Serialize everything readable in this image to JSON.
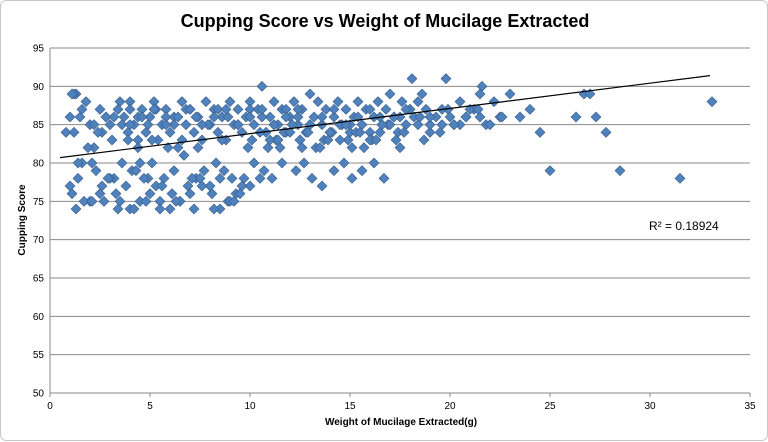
{
  "chart_data": {
    "type": "scatter",
    "title": "Cupping Score vs Weight of Mucilage Extracted",
    "xlabel": "Weight of Mucilage Extracted(g)",
    "ylabel": "Cupping Score",
    "xlim": [
      0,
      35
    ],
    "ylim": [
      50,
      95
    ],
    "xticks": [
      "0",
      "5",
      "10",
      "15",
      "20",
      "25",
      "30",
      "35"
    ],
    "yticks": [
      "50",
      "55",
      "60",
      "65",
      "70",
      "75",
      "80",
      "85",
      "90",
      "95"
    ],
    "grid": "horizontal",
    "legend": "none",
    "marker": "diamond",
    "marker_color": "#4f81bd",
    "marker_edge_color": "#385d8a",
    "trendline": {
      "type": "linear",
      "x": [
        0.5,
        33
      ],
      "y": [
        80.7,
        91.4
      ],
      "color": "#000000"
    },
    "annotation": "R² = 0.18924",
    "series": [
      {
        "x": [
          0.8,
          1.0,
          1.1,
          1.2,
          1.3,
          1.4,
          1.5,
          1.6,
          1.8,
          2.0,
          2.2,
          2.3,
          2.5,
          2.6,
          2.8,
          3.0,
          3.2,
          3.5,
          3.7,
          3.9,
          4.0,
          4.2,
          4.4,
          4.6,
          4.8,
          5.0,
          5.2,
          5.4,
          5.6,
          5.8,
          6.0,
          6.2,
          6.4,
          6.6,
          6.8,
          7.0,
          7.2,
          7.4,
          7.6,
          7.8,
          8.0,
          8.2,
          8.4,
          8.6,
          8.8,
          9.0,
          9.2,
          9.4,
          9.6,
          9.8,
          10.0,
          10.2,
          10.4,
          10.6,
          10.8,
          11.0,
          11.2,
          11.4,
          11.6,
          11.8,
          12.0,
          12.2,
          12.4,
          12.6,
          12.8,
          13.0,
          13.2,
          13.4,
          13.6,
          13.8,
          14.0,
          14.2,
          14.4,
          14.6,
          14.8,
          15.0,
          15.2,
          15.4,
          15.6,
          15.8,
          16.0,
          16.2,
          16.4,
          16.6,
          16.8,
          17.0,
          17.2,
          17.4,
          17.6,
          17.8,
          18.0,
          18.2,
          18.4,
          18.6,
          18.8,
          19.0,
          19.3,
          19.6,
          19.9,
          20.2,
          20.5,
          20.8,
          21.2,
          21.5,
          21.8,
          22.2,
          22.5,
          23.0,
          23.5,
          24.0,
          24.5,
          25.0,
          26.3,
          26.7,
          27.0,
          27.3,
          27.8,
          28.5,
          31.5,
          33.1,
          1.2,
          1.9,
          2.4,
          3.1,
          3.6,
          4.1,
          4.5,
          4.9,
          5.3,
          5.7,
          6.1,
          6.5,
          6.9,
          7.3,
          7.7,
          8.1,
          8.5,
          8.9,
          9.3,
          9.7,
          10.1,
          10.5,
          10.9,
          11.3,
          11.7,
          12.1,
          12.5,
          12.9,
          13.3,
          13.7,
          14.1,
          14.5,
          14.9,
          15.3,
          15.7,
          16.1,
          16.5,
          16.9,
          17.3,
          17.7,
          2.0,
          2.5,
          3.0,
          3.5,
          4.0,
          4.5,
          5.0,
          5.5,
          6.0,
          6.5,
          7.0,
          7.5,
          8.0,
          8.5,
          9.0,
          9.5,
          10.0,
          10.5,
          11.0,
          11.5,
          12.0,
          12.5,
          13.0,
          13.5,
          14.0,
          14.5,
          15.0,
          15.5,
          16.0,
          16.5,
          17.0,
          17.5,
          18.0,
          18.5,
          19.0,
          19.5,
          20.0,
          20.5,
          21.0,
          21.5,
          2.1,
          2.9,
          3.3,
          3.8,
          4.3,
          4.7,
          5.1,
          5.6,
          6.2,
          6.7,
          7.1,
          7.6,
          8.3,
          8.7,
          9.1,
          9.6,
          10.2,
          10.7,
          11.1,
          11.6,
          12.3,
          12.7,
          13.1,
          13.6,
          14.2,
          14.7,
          15.1,
          15.6,
          16.2,
          16.7,
          1.7,
          2.7,
          3.4,
          4.2,
          4.8,
          5.5,
          6.3,
          7.2,
          8.2,
          9.2,
          3.2,
          3.6,
          4.0,
          4.4,
          4.9,
          5.3,
          5.8,
          6.2,
          6.8,
          7.3,
          7.9,
          8.4,
          8.9,
          9.4,
          10.0,
          10.6,
          11.2,
          11.8,
          12.4,
          13.0,
          1.0,
          1.6,
          2.2,
          2.8,
          3.4,
          4.0,
          4.6,
          5.2,
          5.8,
          6.4,
          7.0,
          7.6,
          8.2,
          8.8,
          9.4,
          10.0,
          10.6,
          11.2,
          11.8,
          12.4,
          13.0,
          13.6,
          14.2,
          14.8,
          15.4,
          16.0,
          16.6,
          17.2,
          17.8,
          18.4,
          19.0,
          19.6,
          20.2,
          20.8,
          21.4,
          22.0,
          22.6,
          18.1,
          19.8,
          21.6,
          1.1,
          1.4,
          2.6,
          3.9,
          4.4,
          5.1,
          5.9,
          6.6,
          7.4,
          8.6,
          9.9,
          11.4,
          12.6,
          13.9,
          15.1,
          16.3,
          17.5,
          18.7,
          1.3,
          2.1
        ],
        "y": [
          84,
          77,
          76,
          84,
          89,
          78,
          86,
          80,
          88,
          85,
          82,
          79,
          87,
          84,
          86,
          85,
          78,
          88,
          86,
          84,
          88,
          85,
          83,
          87,
          84,
          86,
          88,
          83,
          85,
          87,
          84,
          86,
          82,
          88,
          85,
          87,
          84,
          86,
          83,
          88,
          85,
          87,
          84,
          86,
          83,
          88,
          85,
          87,
          84,
          86,
          88,
          85,
          87,
          90,
          84,
          86,
          88,
          85,
          87,
          84,
          86,
          88,
          85,
          87,
          84,
          89,
          86,
          88,
          85,
          87,
          84,
          86,
          88,
          85,
          87,
          84,
          86,
          88,
          85,
          87,
          84,
          86,
          88,
          85,
          87,
          89,
          86,
          84,
          88,
          85,
          87,
          86,
          88,
          89,
          87,
          84,
          86,
          85,
          87,
          85,
          88,
          86,
          87,
          89,
          85,
          88,
          86,
          89,
          86,
          87,
          84,
          79,
          86,
          89,
          89,
          86,
          84,
          79,
          78,
          88,
          89,
          82,
          84,
          83,
          80,
          79,
          80,
          78,
          77,
          78,
          76,
          75,
          77,
          78,
          79,
          76,
          78,
          75,
          76,
          78,
          83,
          84,
          82,
          83,
          84,
          85,
          83,
          84,
          82,
          83,
          84,
          85,
          83,
          84,
          82,
          83,
          84,
          85,
          83,
          84,
          75,
          76,
          78,
          75,
          74,
          75,
          76,
          75,
          74,
          75,
          76,
          78,
          77,
          74,
          75,
          76,
          77,
          78,
          83,
          82,
          84,
          83,
          85,
          82,
          84,
          83,
          85,
          84,
          83,
          86,
          85,
          86,
          87,
          86,
          85,
          84,
          86,
          85,
          87,
          86,
          80,
          78,
          76,
          77,
          79,
          78,
          80,
          77,
          79,
          81,
          78,
          77,
          80,
          79,
          78,
          77,
          80,
          79,
          78,
          80,
          79,
          80,
          78,
          77,
          79,
          80,
          78,
          79,
          80,
          78,
          75,
          75,
          74,
          74,
          75,
          74,
          75,
          74,
          74,
          75,
          86,
          85,
          87,
          86,
          85,
          87,
          86,
          85,
          87,
          86,
          85,
          87,
          86,
          85,
          87,
          86,
          85,
          87,
          86,
          85,
          86,
          87,
          85,
          86,
          87,
          85,
          86,
          87,
          85,
          86,
          87,
          85,
          86,
          87,
          85,
          86,
          87,
          85,
          86,
          87,
          85,
          86,
          87,
          85,
          86,
          87,
          85,
          86,
          87,
          85,
          86,
          87,
          85,
          86,
          87,
          85,
          86,
          91,
          91,
          90,
          89,
          80,
          77,
          83,
          82,
          83,
          82,
          83,
          82,
          83,
          82,
          83,
          82,
          83,
          82,
          83,
          82,
          83,
          74,
          75
        ]
      }
    ]
  }
}
